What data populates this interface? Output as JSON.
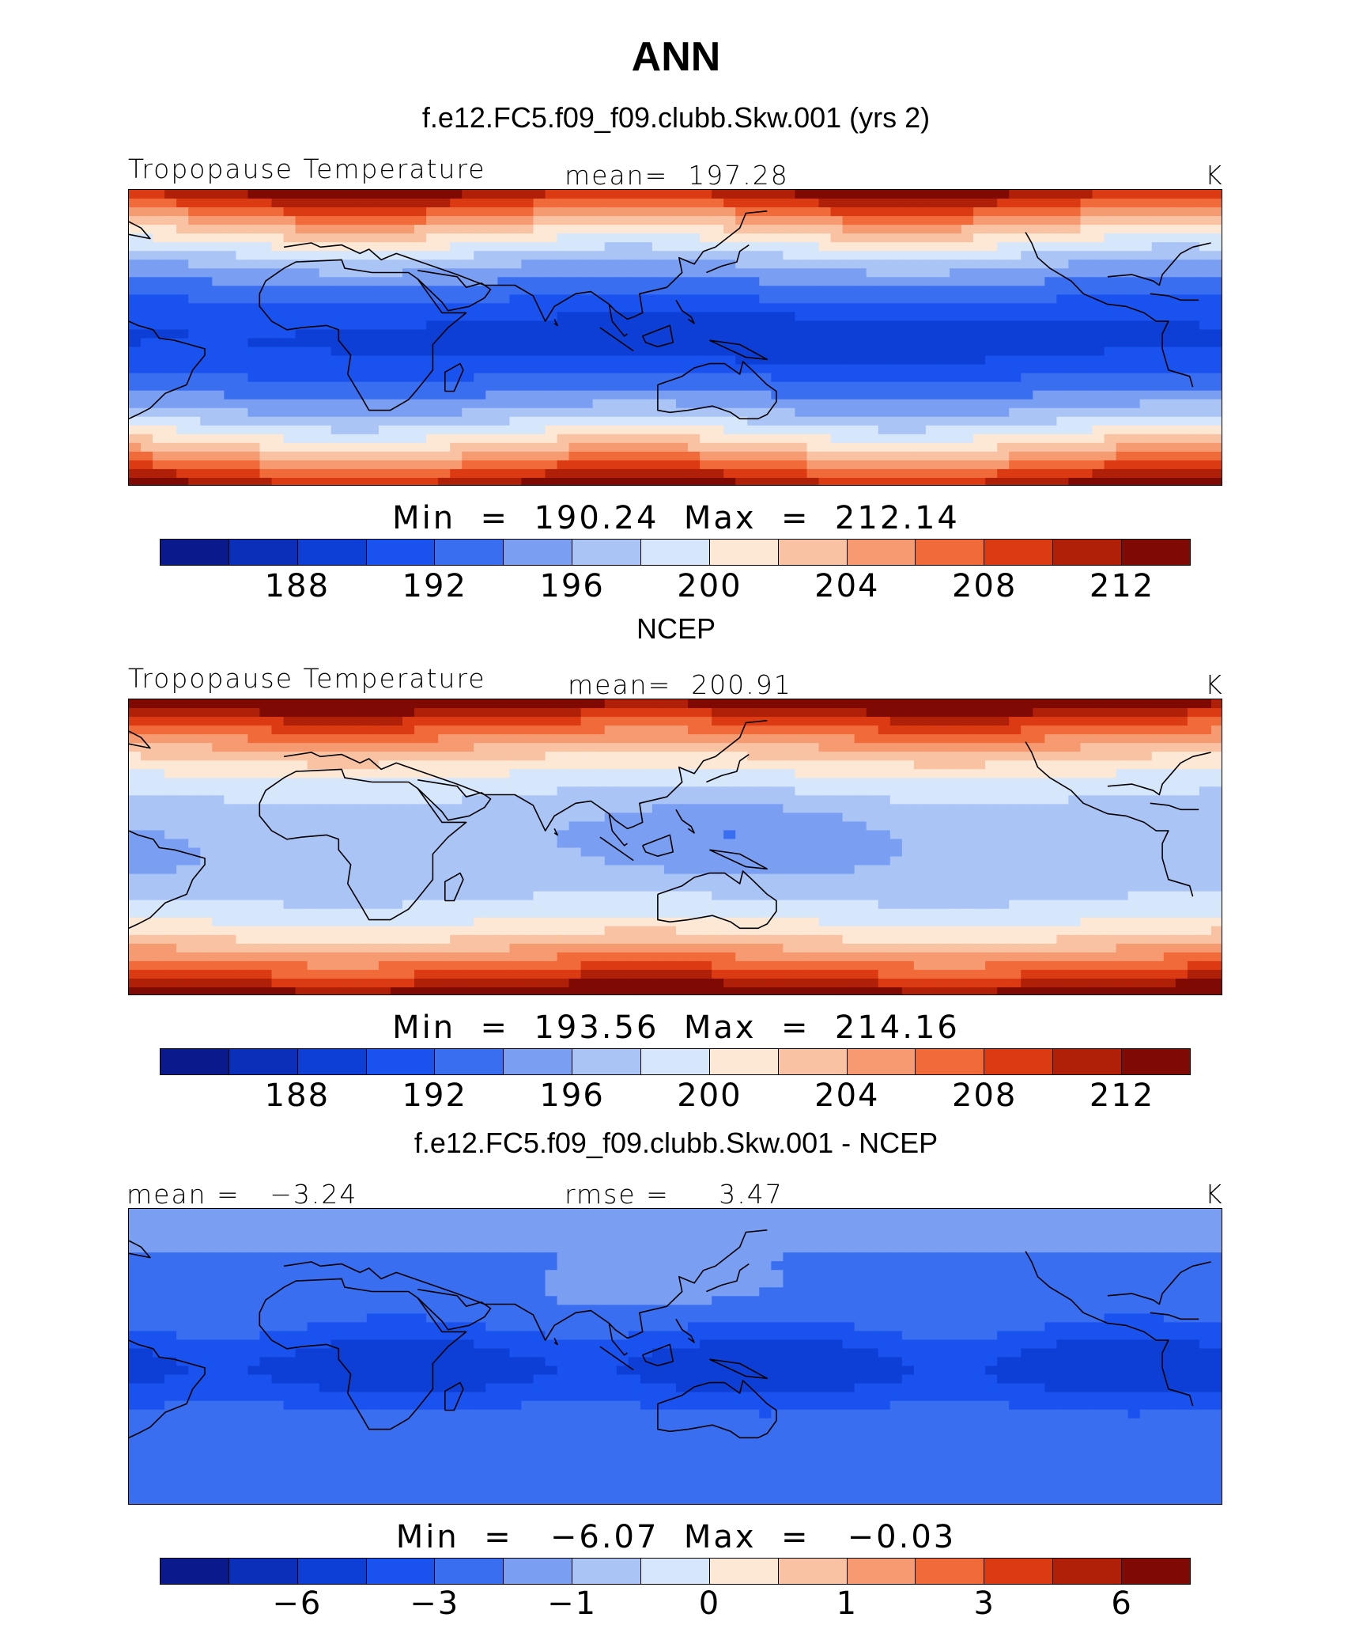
{
  "title": "ANN",
  "palette": [
    "#0a1a8c",
    "#0b2fb8",
    "#0d3fd6",
    "#1a52f0",
    "#3a6ef0",
    "#7a9ff2",
    "#aac4f6",
    "#d6e6fb",
    "#fde8d6",
    "#f9c3a3",
    "#f69a72",
    "#f06a3a",
    "#dc3a12",
    "#b01f08",
    "#7f0a04"
  ],
  "panels": [
    {
      "subtitle": "f.e12.FC5.f09_f09.clubb.Skw.001 (yrs 2)",
      "left_label": "Tropopause Temperature",
      "center_label": "mean=  197.28",
      "right_label": "K",
      "minmax": "Min  =  190.24  Max  =  212.14",
      "ticks": [
        "188",
        "192",
        "196",
        "200",
        "204",
        "208",
        "212"
      ],
      "field": "model"
    },
    {
      "subtitle": "NCEP",
      "left_label": "Tropopause Temperature",
      "center_label": "mean=  200.91",
      "right_label": "K",
      "minmax": "Min  =  193.56  Max  =  214.16",
      "ticks": [
        "188",
        "192",
        "196",
        "200",
        "204",
        "208",
        "212"
      ],
      "field": "obs"
    },
    {
      "subtitle": "f.e12.FC5.f09_f09.clubb.Skw.001 - NCEP",
      "left_label": "mean =   −3.24",
      "center_label": "rmse =     3.47",
      "right_label": "K",
      "minmax": "Min  =   −6.07  Max  =   −0.03",
      "ticks": [
        "−6",
        "−3",
        "−1",
        "0",
        "1",
        "3",
        "6"
      ],
      "field": "diff"
    }
  ]
}
